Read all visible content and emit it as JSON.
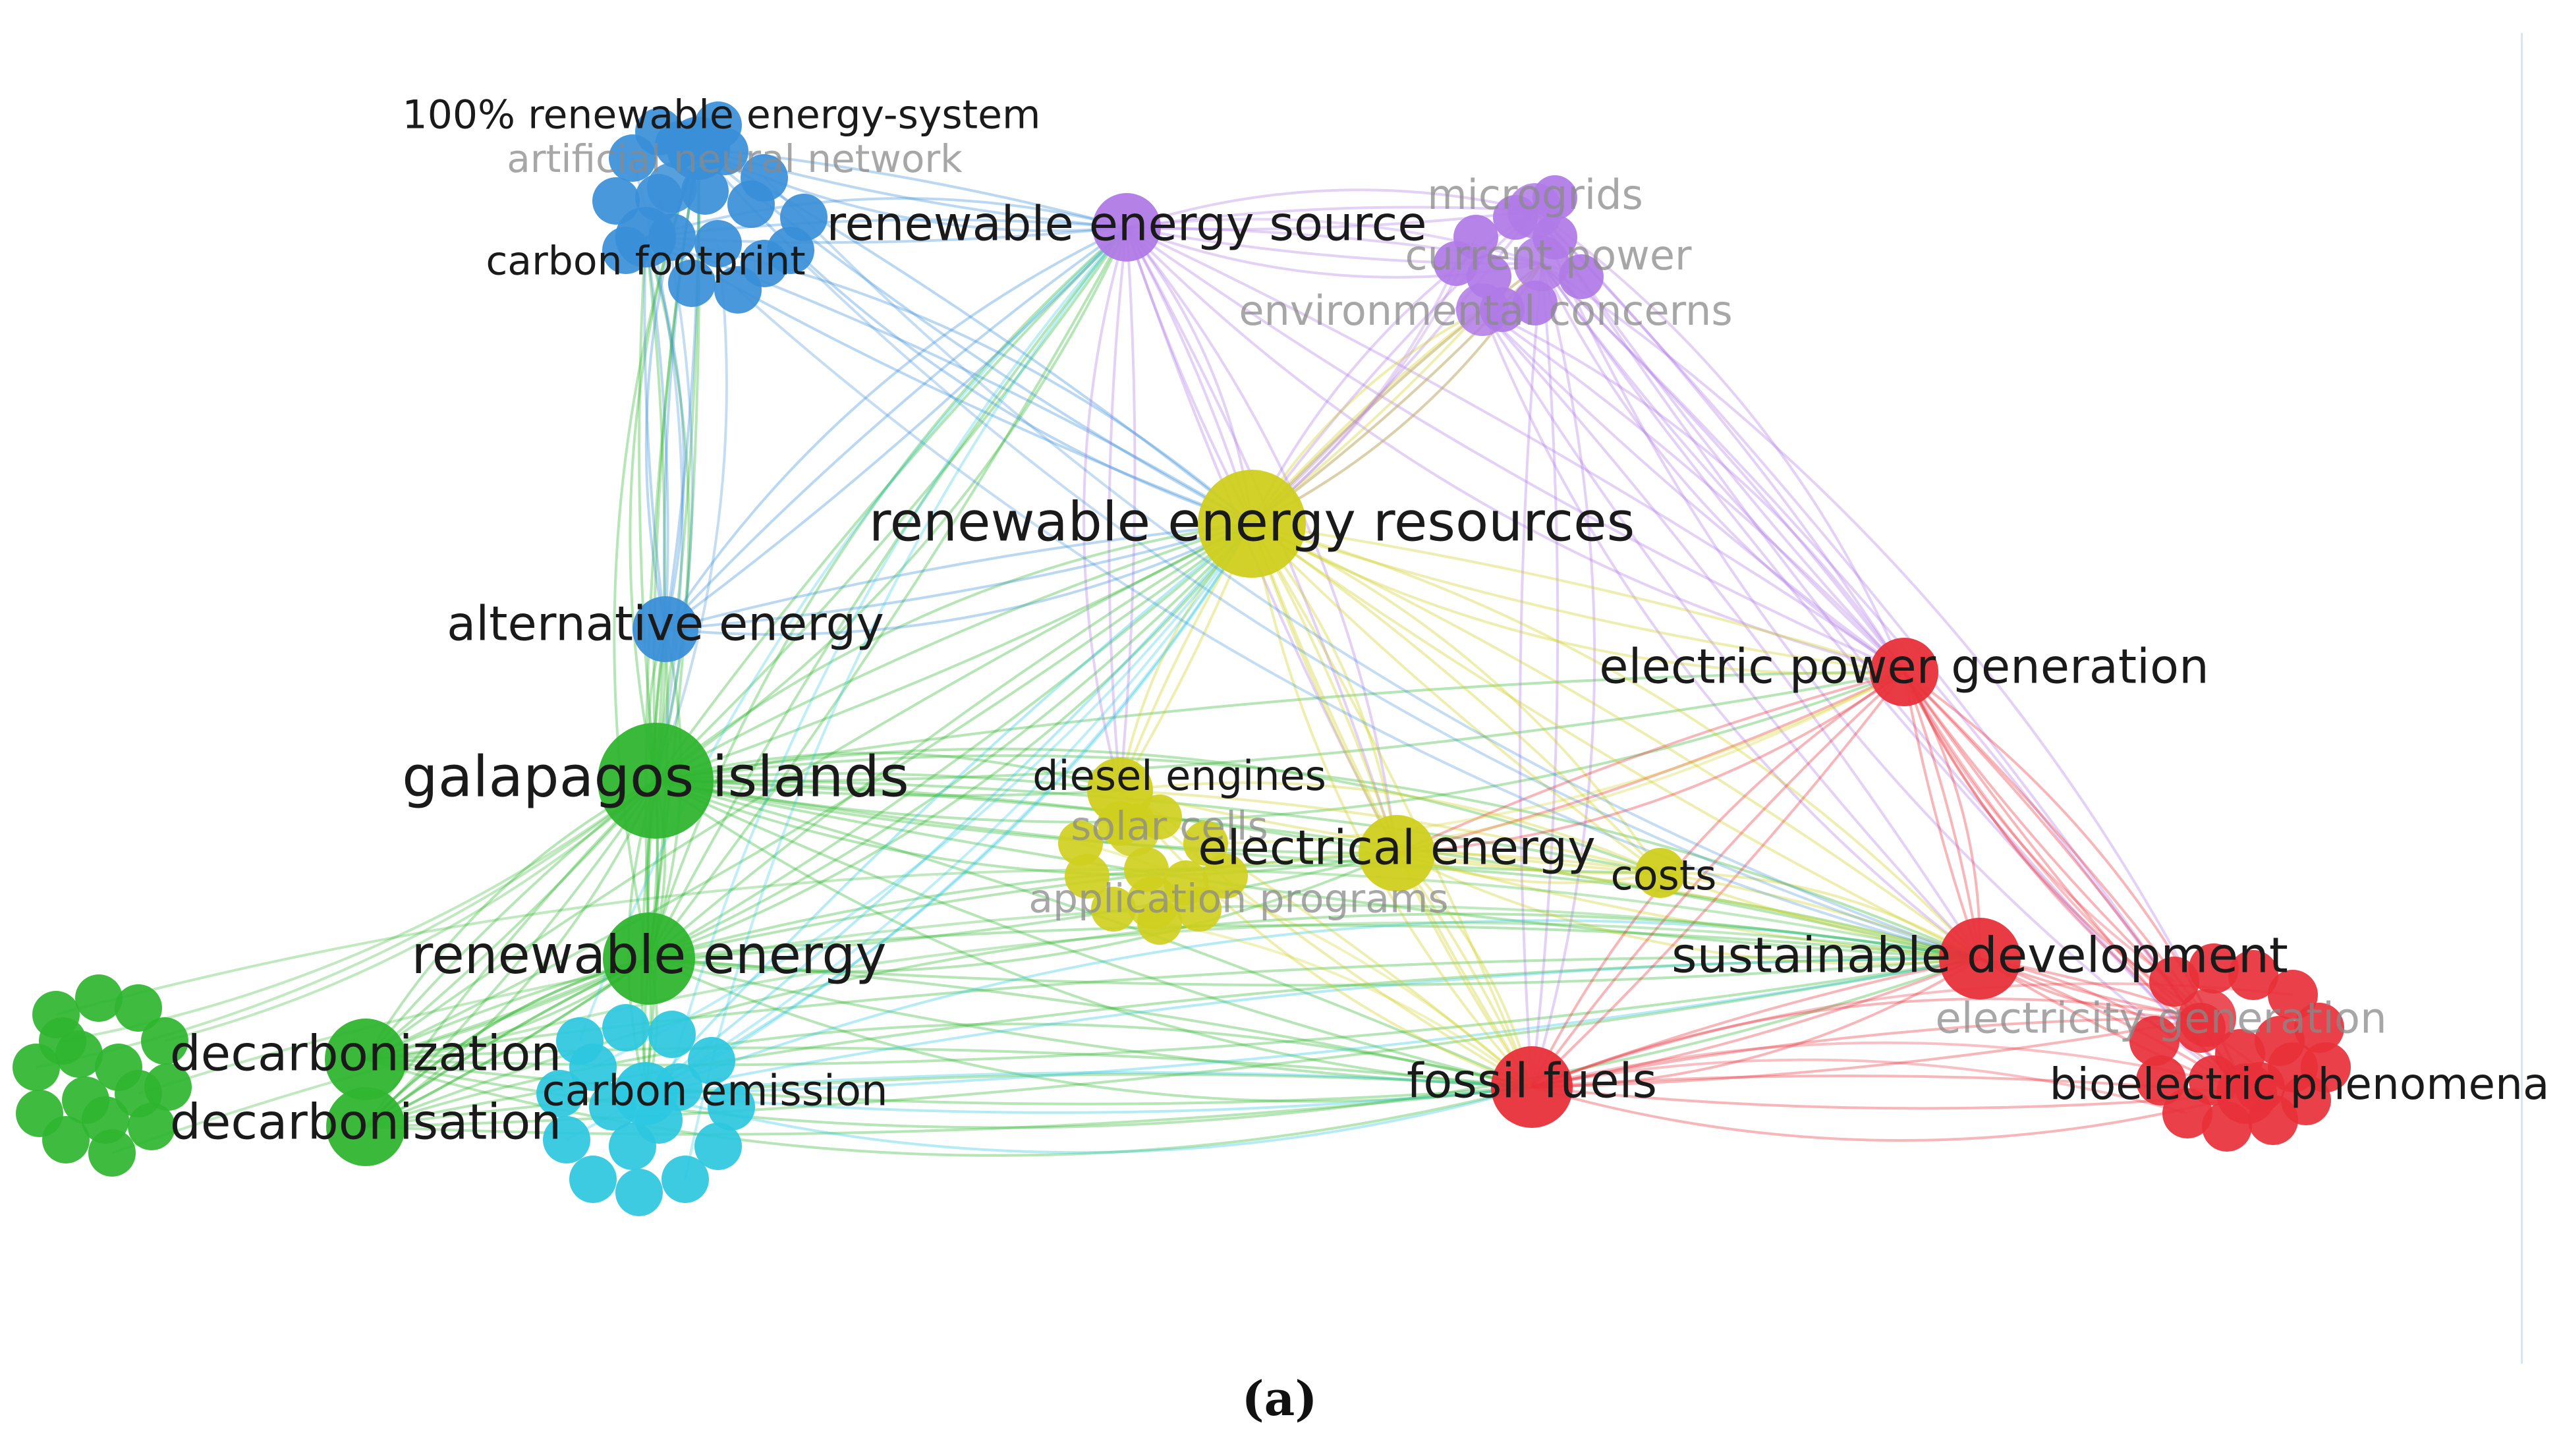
{
  "caption": "(a)",
  "colors": {
    "red": "#e8303a",
    "green": "#2fb52f",
    "blue": "#3a8fd8",
    "yellow": "#cfcf1f",
    "purple": "#b07ae6",
    "cyan": "#2cc7e0"
  },
  "nodes": [
    {
      "id": "n1",
      "label": "100% renewable energy-system",
      "cluster": "blue",
      "size": "small",
      "faded": false
    },
    {
      "id": "n2",
      "label": "artificial neural network",
      "cluster": "blue",
      "size": "small",
      "faded": true
    },
    {
      "id": "n3",
      "label": "carbon footprint",
      "cluster": "blue",
      "size": "small",
      "faded": false
    },
    {
      "id": "n4",
      "label": "renewable energy source",
      "cluster": "purple",
      "size": "medium",
      "faded": false
    },
    {
      "id": "n5",
      "label": "microgrids",
      "cluster": "purple",
      "size": "small",
      "faded": true
    },
    {
      "id": "n6",
      "label": "current power",
      "cluster": "purple",
      "size": "small",
      "faded": true
    },
    {
      "id": "n7",
      "label": "environmental concerns",
      "cluster": "purple",
      "size": "small",
      "faded": true
    },
    {
      "id": "n8",
      "label": "renewable energy resources",
      "cluster": "yellow",
      "size": "large",
      "faded": false
    },
    {
      "id": "n9",
      "label": "alternative energy",
      "cluster": "blue",
      "size": "medium",
      "faded": false
    },
    {
      "id": "n10",
      "label": "electric power generation",
      "cluster": "red",
      "size": "medium",
      "faded": false
    },
    {
      "id": "n11",
      "label": "galapagos islands",
      "cluster": "green",
      "size": "large",
      "faded": false
    },
    {
      "id": "n12",
      "label": "diesel engines",
      "cluster": "yellow",
      "size": "small",
      "faded": false
    },
    {
      "id": "n13",
      "label": "solar cells",
      "cluster": "yellow",
      "size": "small",
      "faded": true
    },
    {
      "id": "n14",
      "label": "electrical energy",
      "cluster": "yellow",
      "size": "medium",
      "faded": false
    },
    {
      "id": "n15",
      "label": "application programs",
      "cluster": "yellow",
      "size": "small",
      "faded": true
    },
    {
      "id": "n16",
      "label": "costs",
      "cluster": "yellow",
      "size": "small",
      "faded": false
    },
    {
      "id": "n17",
      "label": "renewable energy",
      "cluster": "green",
      "size": "large",
      "faded": false
    },
    {
      "id": "n18",
      "label": "sustainable development",
      "cluster": "red",
      "size": "large",
      "faded": false
    },
    {
      "id": "n19",
      "label": "electricity generation",
      "cluster": "red",
      "size": "small",
      "faded": true
    },
    {
      "id": "n20",
      "label": "decarbonization",
      "cluster": "green",
      "size": "large",
      "faded": false
    },
    {
      "id": "n21",
      "label": "decarbonisation",
      "cluster": "green",
      "size": "large",
      "faded": false
    },
    {
      "id": "n22",
      "label": "carbon emission",
      "cluster": "cyan",
      "size": "small",
      "faded": false
    },
    {
      "id": "n23",
      "label": "fossil fuels",
      "cluster": "red",
      "size": "large",
      "faded": false
    },
    {
      "id": "n24",
      "label": "bioelectric phenomena",
      "cluster": "red",
      "size": "small",
      "faded": false
    }
  ]
}
